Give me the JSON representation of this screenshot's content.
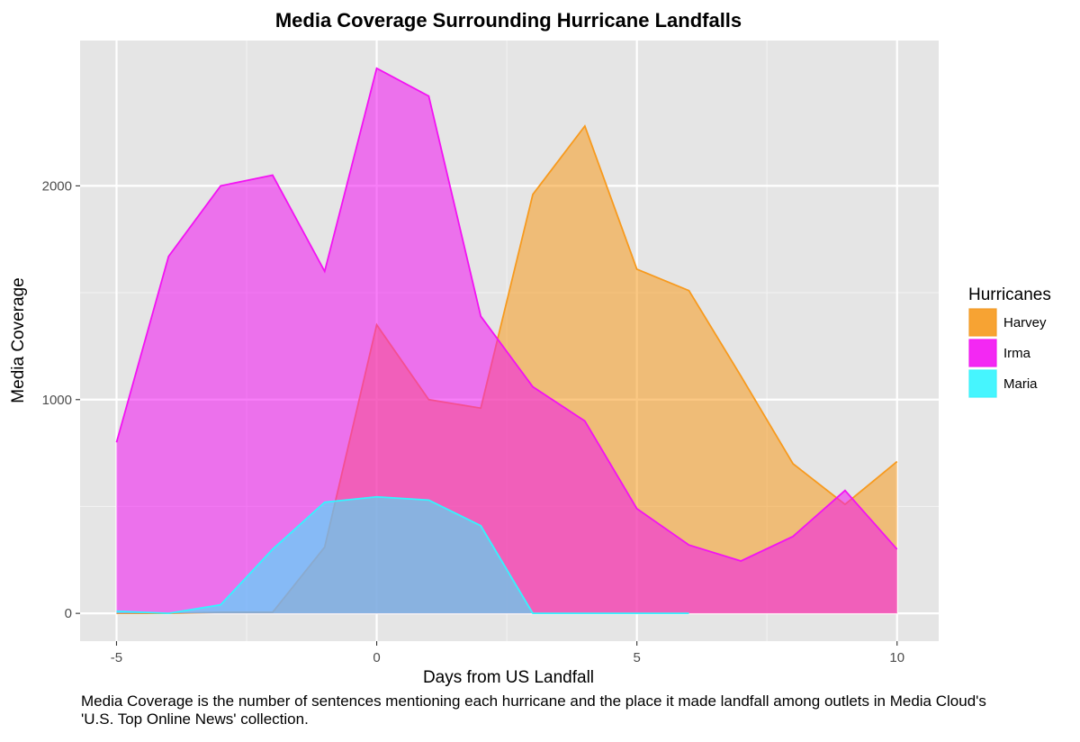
{
  "chart_data": {
    "type": "area",
    "title": "Media Coverage Surrounding Hurricane Landfalls",
    "xlabel": "Days from US Landfall",
    "ylabel": "Media Coverage",
    "xlim": [
      -5.7,
      10.8
    ],
    "ylim": [
      -130,
      2680
    ],
    "x_ticks": [
      -5,
      0,
      5,
      10
    ],
    "x_tick_labels": [
      "-5",
      "0",
      "5",
      "10"
    ],
    "y_ticks": [
      0,
      1000,
      2000
    ],
    "y_tick_labels": [
      "0",
      "1000",
      "2000"
    ],
    "grid": true,
    "legend_title": "Hurricanes",
    "legend_position": "right",
    "series": [
      {
        "name": "Harvey",
        "color": "#f79a1e",
        "x": [
          -5,
          -4,
          -3,
          -2,
          -1,
          0,
          1,
          2,
          3,
          4,
          5,
          6,
          7,
          8,
          9,
          10
        ],
        "values": [
          0,
          0,
          5,
          5,
          310,
          1350,
          1000,
          960,
          1960,
          2280,
          1610,
          1510,
          1110,
          700,
          510,
          710
        ]
      },
      {
        "name": "Irma",
        "color": "#f312f3",
        "x": [
          -5,
          -4,
          -3,
          -2,
          -1,
          0,
          1,
          2,
          3,
          4,
          5,
          6,
          7,
          8,
          9,
          10
        ],
        "values": [
          800,
          1670,
          2000,
          2050,
          1600,
          2550,
          2420,
          1390,
          1060,
          900,
          490,
          320,
          245,
          360,
          575,
          300
        ]
      },
      {
        "name": "Maria",
        "color": "#33f5ff",
        "x": [
          -5,
          -4,
          -3,
          -2,
          -1,
          0,
          1,
          2,
          3,
          4,
          5,
          6
        ],
        "values": [
          10,
          0,
          40,
          300,
          520,
          545,
          530,
          410,
          0,
          0,
          0,
          0
        ]
      }
    ]
  },
  "caption": "Media Coverage is the number of sentences mentioning each hurricane and the place it made landfall among outlets in Media Cloud's 'U.S. Top Online News' collection."
}
